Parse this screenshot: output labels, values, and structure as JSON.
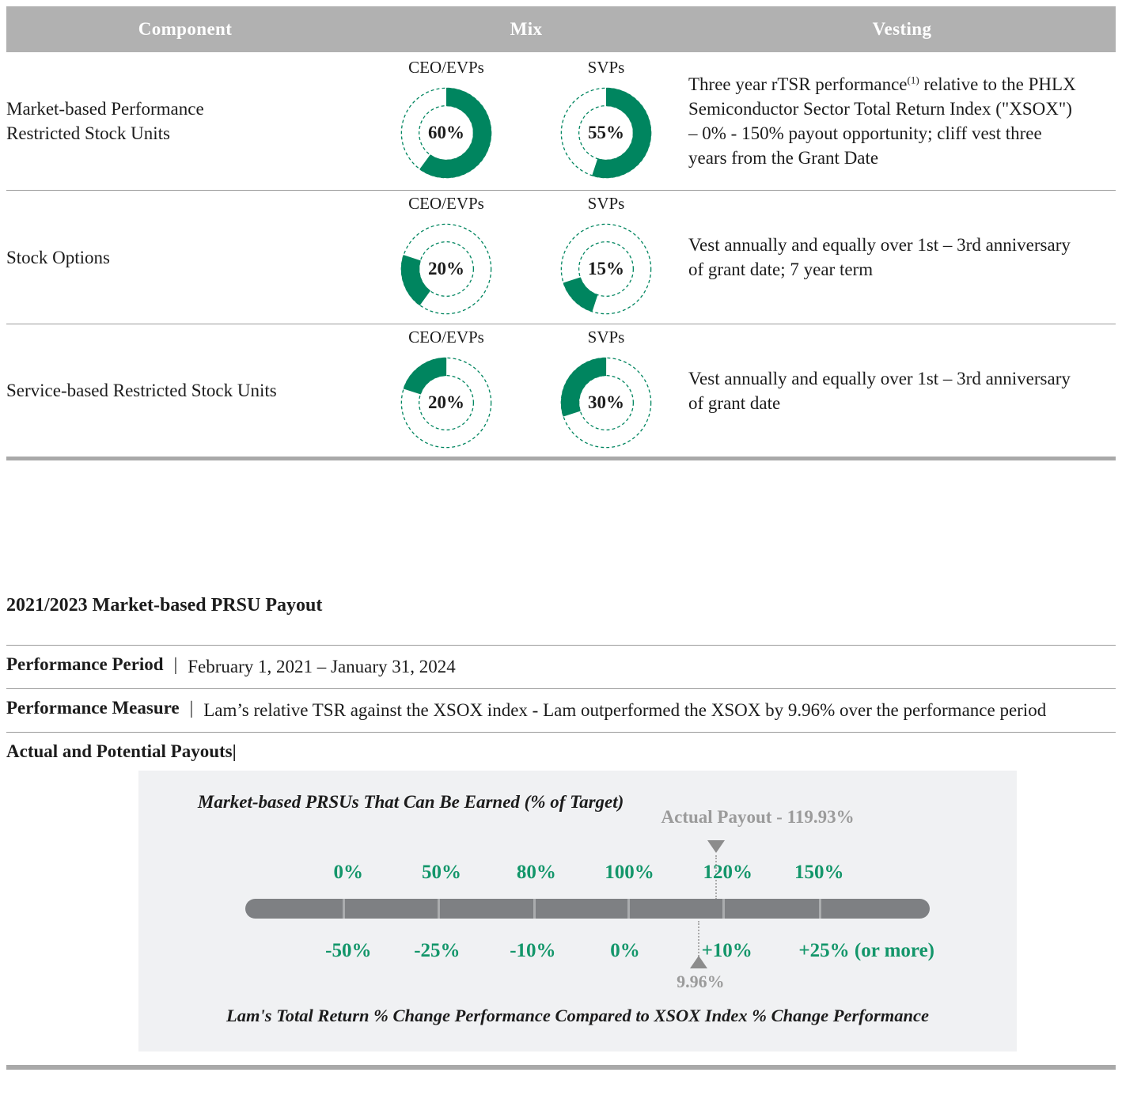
{
  "colors": {
    "accent_green": "#00855F",
    "scale_green": "#13966A",
    "header_bg": "#B1B1B1",
    "muted_gray": "#9B9B9B",
    "bar_gray": "#7E8083",
    "chart_bg": "#F0F1F3",
    "rule_gray": "#A9A9A9",
    "text": "#1C1C1C"
  },
  "table": {
    "headers": [
      "Component",
      "Mix",
      "Vesting"
    ],
    "rows": [
      {
        "component": "Market-based Performance Restricted Stock Units",
        "donuts": [
          {
            "group": "CEO/EVPs",
            "label": "60%",
            "value": 60,
            "start": 0
          },
          {
            "group": "SVPs",
            "label": "55%",
            "value": 55,
            "start": 0
          }
        ],
        "vesting_pre": "Three year rTSR performance",
        "vesting_sup": "(1)",
        "vesting_post": " relative to the PHLX Semiconductor Sector Total Return Index (\"XSOX\") – 0% - 150% payout opportunity; cliff vest three years from the Grant Date"
      },
      {
        "component": "Stock Options",
        "donuts": [
          {
            "group": "CEO/EVPs",
            "label": "20%",
            "value": 20,
            "start": 60
          },
          {
            "group": "SVPs",
            "label": "15%",
            "value": 15,
            "start": 55
          }
        ],
        "vesting": "Vest annually and equally over 1st – 3rd anniversary of grant date; 7 year term"
      },
      {
        "component": "Service-based Restricted Stock Units",
        "donuts": [
          {
            "group": "CEO/EVPs",
            "label": "20%",
            "value": 20,
            "start": 80
          },
          {
            "group": "SVPs",
            "label": "30%",
            "value": 30,
            "start": 70
          }
        ],
        "vesting": "Vest annually and equally over 1st – 3rd anniversary of grant date"
      }
    ]
  },
  "payout_section": {
    "title": "2021/2023 Market-based PRSU Payout",
    "rows": [
      {
        "label": "Performance Period",
        "separator": "|",
        "value": "February 1, 2021 – January 31, 2024"
      },
      {
        "label": "Performance Measure",
        "separator": "|",
        "value": "Lam’s relative TSR against the XSOX index - Lam outperformed the XSOX by 9.96% over the performance period"
      }
    ],
    "payouts_label": "Actual and Potential Payouts|"
  },
  "chart_data": {
    "type": "scale",
    "title": "Market-based PRSUs That Can Be Earned (% of Target)",
    "actual_payout_label": "Actual Payout - 119.93%",
    "actual_payout_pct": 119.93,
    "top_scale": [
      "0%",
      "50%",
      "80%",
      "100%",
      "120%",
      "150%"
    ],
    "bottom_scale": [
      "-50%",
      "-25%",
      "-10%",
      "0%",
      "+10%",
      "+25% (or more)"
    ],
    "performance_marker_label": "9.96%",
    "performance_marker_value": 9.96,
    "caption": "Lam's Total Return % Change Performance Compared to XSOX Index % Change Performance"
  }
}
